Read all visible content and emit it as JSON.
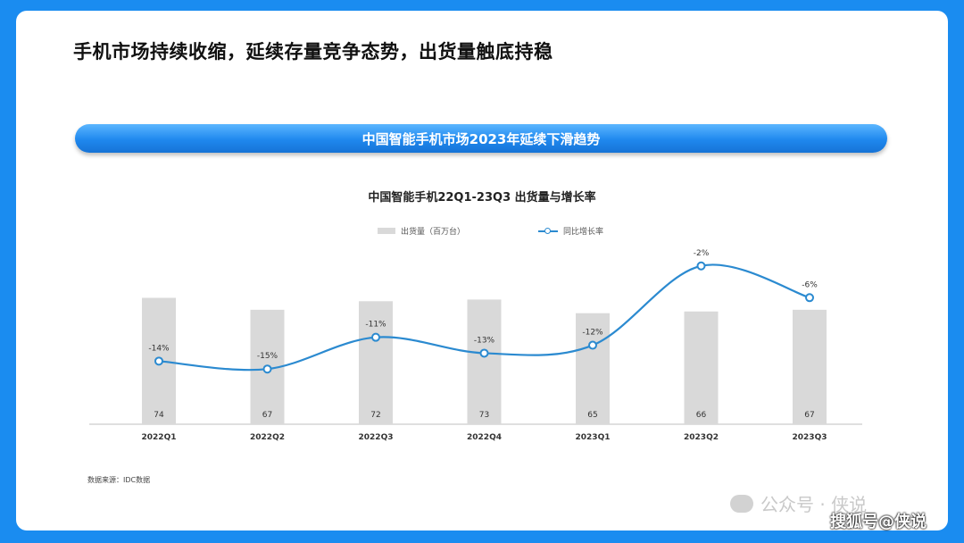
{
  "page": {
    "title": "手机市场持续收缩，延续存量竞争态势，出货量触底持稳",
    "banner": "中国智能手机市场2023年延续下滑趋势",
    "source": "数据来源：IDC数据",
    "watermark": "公众号 · 侠说",
    "sohu_mark": "搜狐号@侠说"
  },
  "colors": {
    "background": "#1a8cf0",
    "bar": "#d9d9d9",
    "line": "#2b8ad0"
  },
  "chart_data": {
    "type": "bar",
    "title": "中国智能手机22Q1-23Q3 出货量与增长率",
    "categories": [
      "2022Q1",
      "2022Q2",
      "2022Q3",
      "2022Q4",
      "2023Q1",
      "2023Q2",
      "2023Q3"
    ],
    "legend_position": "top",
    "grid": false,
    "series": [
      {
        "name": "出货量（百万台）",
        "type": "bar",
        "values": [
          74,
          67,
          72,
          73,
          65,
          66,
          67
        ],
        "ylim": [
          0,
          80
        ]
      },
      {
        "name": "同比增长率",
        "type": "line",
        "values": [
          -14,
          -15,
          -11,
          -13,
          -12,
          -2,
          -6
        ],
        "value_labels": [
          "-14%",
          "-15%",
          "-11%",
          "-13%",
          "-12%",
          "-2%",
          "-6%"
        ],
        "ylim": [
          -25,
          0
        ]
      }
    ]
  }
}
